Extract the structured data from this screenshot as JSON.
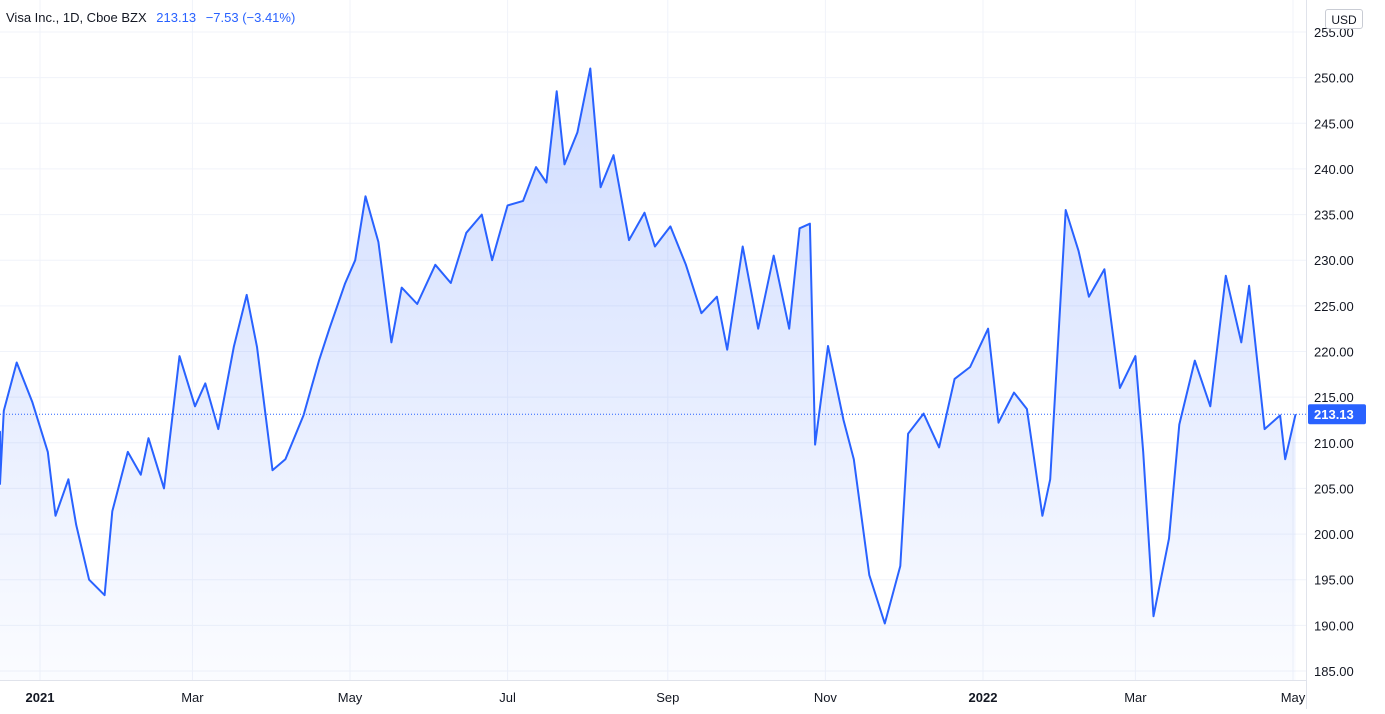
{
  "legend": {
    "symbol": "Visa Inc., 1D, Cboe BZX",
    "price": "213.13",
    "change": "−7.53 (−3.41%)"
  },
  "currency_button": "USD",
  "last_price_label": "213.13",
  "colors": {
    "line": "#2962ff",
    "fill_top": "#2962ff",
    "grid": "#f0f3fa",
    "axis_text": "#131722",
    "price_label_bg": "#2962ff"
  },
  "chart_data": {
    "type": "area",
    "title": "Visa Inc., 1D, Cboe BZX",
    "ylabel": "USD",
    "ylim": [
      184,
      256
    ],
    "y_ticks": [
      "185.00",
      "190.00",
      "195.00",
      "200.00",
      "205.00",
      "210.00",
      "215.00",
      "220.00",
      "225.00",
      "230.00",
      "235.00",
      "240.00",
      "245.00",
      "250.00",
      "255.00"
    ],
    "x_ticks": [
      {
        "label": "2021",
        "date": "2021-01-01",
        "bold": true
      },
      {
        "label": "Mar",
        "date": "2021-03-01",
        "bold": false
      },
      {
        "label": "May",
        "date": "2021-05-01",
        "bold": false
      },
      {
        "label": "Jul",
        "date": "2021-07-01",
        "bold": false
      },
      {
        "label": "Sep",
        "date": "2021-09-01",
        "bold": false
      },
      {
        "label": "Nov",
        "date": "2021-11-01",
        "bold": false
      },
      {
        "label": "2022",
        "date": "2022-01-01",
        "bold": true
      },
      {
        "label": "Mar",
        "date": "2022-03-01",
        "bold": false
      },
      {
        "label": "May",
        "date": "2022-05-01",
        "bold": false
      }
    ],
    "grid": true,
    "last_value": 213.13,
    "series": [
      {
        "x": [
          "2020-12-04",
          "2020-12-09",
          "2020-12-14",
          "2020-12-18",
          "2020-12-23",
          "2020-12-29",
          "2021-01-04",
          "2021-01-07",
          "2021-01-12",
          "2021-01-15",
          "2021-01-20",
          "2021-01-26",
          "2021-01-29",
          "2021-02-04",
          "2021-02-09",
          "2021-02-12",
          "2021-02-18",
          "2021-02-24",
          "2021-03-02",
          "2021-03-06",
          "2021-03-11",
          "2021-03-17",
          "2021-03-22",
          "2021-03-26",
          "2021-04-01",
          "2021-04-06",
          "2021-04-13",
          "2021-04-19",
          "2021-04-23",
          "2021-04-29",
          "2021-05-03",
          "2021-05-07",
          "2021-05-12",
          "2021-05-17",
          "2021-05-21",
          "2021-05-27",
          "2021-06-03",
          "2021-06-09",
          "2021-06-15",
          "2021-06-21",
          "2021-06-25",
          "2021-07-01",
          "2021-07-07",
          "2021-07-12",
          "2021-07-16",
          "2021-07-20",
          "2021-07-23",
          "2021-07-28",
          "2021-08-02",
          "2021-08-06",
          "2021-08-11",
          "2021-08-17",
          "2021-08-23",
          "2021-08-27",
          "2021-09-02",
          "2021-09-08",
          "2021-09-14",
          "2021-09-20",
          "2021-09-24",
          "2021-09-30",
          "2021-10-06",
          "2021-10-12",
          "2021-10-18",
          "2021-10-22",
          "2021-10-26",
          "2021-10-28",
          "2021-11-02",
          "2021-11-08",
          "2021-11-12",
          "2021-11-18",
          "2021-11-24",
          "2021-11-30",
          "2021-12-03",
          "2021-12-09",
          "2021-12-15",
          "2021-12-21",
          "2021-12-27",
          "2022-01-03",
          "2022-01-07",
          "2022-01-13",
          "2022-01-18",
          "2022-01-24",
          "2022-01-27",
          "2022-02-02",
          "2022-02-07",
          "2022-02-11",
          "2022-02-17",
          "2022-02-23",
          "2022-03-01",
          "2022-03-04",
          "2022-03-08",
          "2022-03-14",
          "2022-03-18",
          "2022-03-24",
          "2022-03-30",
          "2022-04-05",
          "2022-04-11",
          "2022-04-14",
          "2022-04-20",
          "2022-04-26",
          "2022-04-28",
          "2022-05-02"
        ],
        "values": [
          208.5,
          211.2,
          205.5,
          213.5,
          218.8,
          214.5,
          209,
          202,
          206,
          201,
          195,
          193.3,
          202.5,
          209,
          206.5,
          210.5,
          205,
          219.5,
          214,
          216.5,
          211.5,
          220.5,
          226.2,
          220.5,
          207,
          208.2,
          213,
          219,
          222.5,
          227.4,
          230,
          237,
          232,
          221,
          227,
          225.2,
          229.5,
          227.5,
          233,
          235,
          230,
          236,
          236.5,
          240.2,
          238.5,
          248.5,
          240.5,
          244,
          251,
          238,
          241.5,
          232.2,
          235.2,
          231.5,
          233.7,
          229.5,
          224.2,
          226,
          220.2,
          231.5,
          222.5,
          230.5,
          222.5,
          233.5,
          234,
          209.8,
          220.6,
          212.5,
          208.2,
          195.5,
          190.2,
          196.5,
          211,
          213.2,
          209.5,
          217,
          218.3,
          222.5,
          212.2,
          215.5,
          213.7,
          202,
          206,
          235.5,
          231,
          226,
          229,
          216,
          219.5,
          209,
          191,
          199.5,
          212,
          219,
          214,
          228.3,
          221,
          227.2,
          211.5,
          213,
          208.2,
          213.13
        ]
      }
    ]
  }
}
